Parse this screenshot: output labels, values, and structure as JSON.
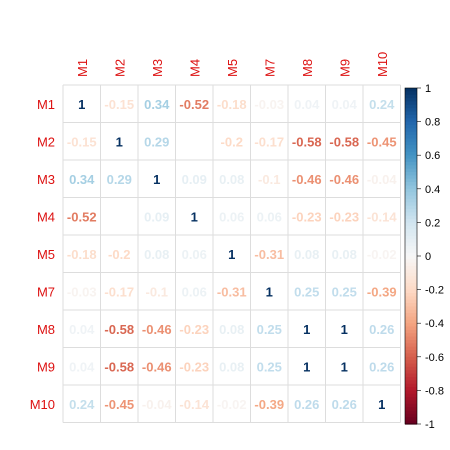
{
  "chart_data": {
    "type": "heatmap",
    "variables": [
      "M1",
      "M2",
      "M3",
      "M4",
      "M5",
      "M7",
      "M8",
      "M9",
      "M10"
    ],
    "matrix": [
      [
        1,
        -0.15,
        0.34,
        -0.52,
        -0.18,
        -0.03,
        0.04,
        0.04,
        0.24
      ],
      [
        -0.15,
        1,
        0.29,
        null,
        -0.2,
        -0.17,
        -0.58,
        -0.58,
        -0.45
      ],
      [
        0.34,
        0.29,
        1,
        0.09,
        0.08,
        -0.1,
        -0.46,
        -0.46,
        -0.04
      ],
      [
        -0.52,
        null,
        0.09,
        1,
        0.06,
        0.06,
        -0.23,
        -0.23,
        -0.14
      ],
      [
        -0.18,
        -0.2,
        0.08,
        0.06,
        1,
        -0.31,
        0.08,
        0.08,
        -0.02
      ],
      [
        -0.03,
        -0.17,
        -0.1,
        0.06,
        -0.31,
        1,
        0.25,
        0.25,
        -0.39
      ],
      [
        0.04,
        -0.58,
        -0.46,
        -0.23,
        0.08,
        0.25,
        1,
        1,
        0.26
      ],
      [
        0.04,
        -0.58,
        -0.46,
        -0.23,
        0.08,
        0.25,
        1,
        1,
        0.26
      ],
      [
        0.24,
        -0.45,
        -0.04,
        -0.14,
        -0.02,
        -0.39,
        0.26,
        0.26,
        1
      ]
    ],
    "colorbar": {
      "range": [
        -1,
        1
      ],
      "ticks": [
        "-1",
        "-0.8",
        "-0.6",
        "-0.4",
        "-0.2",
        "0",
        "0.2",
        "0.4",
        "0.6",
        "0.8",
        "1"
      ],
      "low_color": "#67001F",
      "mid_color": "#F7F7F7",
      "high_color": "#053061"
    },
    "label_color": "#DD1111",
    "grid": true
  }
}
